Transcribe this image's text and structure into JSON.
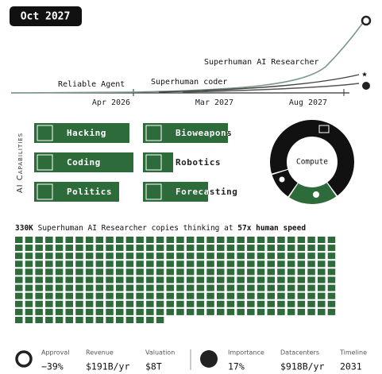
{
  "date": "Oct 2027",
  "timeline": {
    "milestones": [
      "Reliable Agent",
      "Superhuman coder",
      "Superhuman AI Researcher"
    ],
    "x_labels": [
      "Apr 2026",
      "Mar 2027",
      "Aug 2027"
    ]
  },
  "capabilities": {
    "title": "AI Capabilities",
    "items": [
      "Hacking",
      "Coding",
      "Politics",
      "Bioweapons",
      "Robotics",
      "Forecasting"
    ]
  },
  "donut": {
    "label": "Compute"
  },
  "copies": {
    "count": "330K",
    "text": " Superhuman AI Researcher copies thinking at ",
    "speed": "57x human speed"
  },
  "stats": [
    {
      "label": "Approval",
      "value": "−39%"
    },
    {
      "label": "Revenue",
      "value": "$191B/yr"
    },
    {
      "label": "Valuation",
      "value": "$8T"
    },
    {
      "label": "Importance",
      "value": "17%"
    },
    {
      "label": "Datacenters",
      "value": "$918B/yr"
    },
    {
      "label": "Timeline",
      "value": "2031"
    }
  ]
}
